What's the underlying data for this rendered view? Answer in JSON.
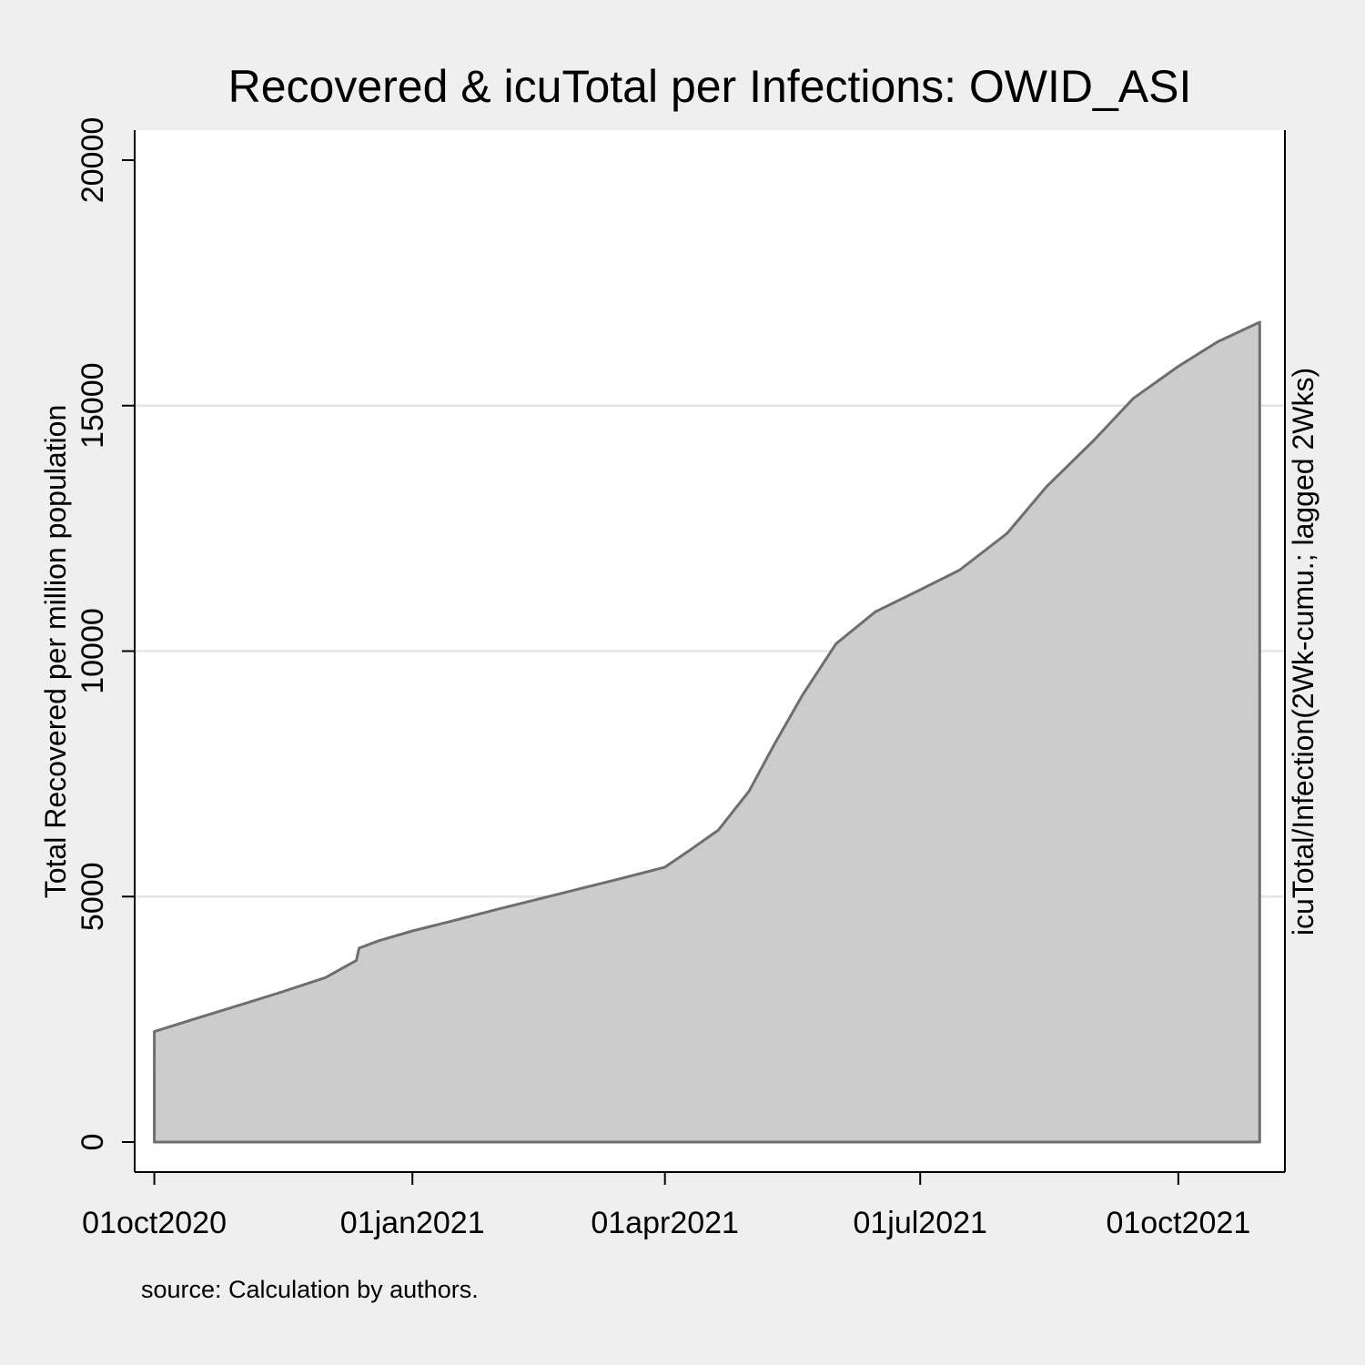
{
  "chart_data": {
    "type": "area",
    "title": "Recovered & icuTotal per Infections: OWID_ASI",
    "ylabel": "Total Recovered per million population",
    "y2label": "icuTotal/Infection(2Wk-cumu.; lagged 2Wks)",
    "note": "source: Calculation by authors.",
    "ylim": [
      0,
      20000
    ],
    "yticks": [
      0,
      5000,
      10000,
      15000,
      20000
    ],
    "xlim": [
      "2020-09-24",
      "2021-11-08"
    ],
    "xticks": [
      {
        "date": "2020-10-01",
        "label": "01oct2020"
      },
      {
        "date": "2021-01-01",
        "label": "01jan2021"
      },
      {
        "date": "2021-04-01",
        "label": "01apr2021"
      },
      {
        "date": "2021-07-01",
        "label": "01jul2021"
      },
      {
        "date": "2021-10-01",
        "label": "01oct2021"
      }
    ],
    "grid": true,
    "fill_color": "#cccccc",
    "line_color": "#6e6e6e",
    "series": [
      {
        "x": [
          "2020-10-01",
          "2020-10-15",
          "2020-11-01",
          "2020-11-15",
          "2020-12-01",
          "2020-12-12",
          "2020-12-13",
          "2020-12-20",
          "2021-01-01",
          "2021-01-15",
          "2021-02-01",
          "2021-02-15",
          "2021-03-01",
          "2021-03-15",
          "2021-04-01",
          "2021-04-10",
          "2021-04-20",
          "2021-05-01",
          "2021-05-10",
          "2021-05-20",
          "2021-06-01",
          "2021-06-15",
          "2021-07-01",
          "2021-07-15",
          "2021-08-01",
          "2021-08-15",
          "2021-09-01",
          "2021-09-15",
          "2021-10-01",
          "2021-10-15",
          "2021-10-30"
        ],
        "values": [
          2250,
          2500,
          2800,
          3050,
          3350,
          3700,
          3950,
          4100,
          4300,
          4500,
          4750,
          4950,
          5150,
          5350,
          5600,
          5950,
          6350,
          7150,
          8100,
          9100,
          10150,
          10800,
          11250,
          11650,
          12400,
          13350,
          14300,
          15150,
          15800,
          16300,
          16700
        ]
      }
    ]
  }
}
